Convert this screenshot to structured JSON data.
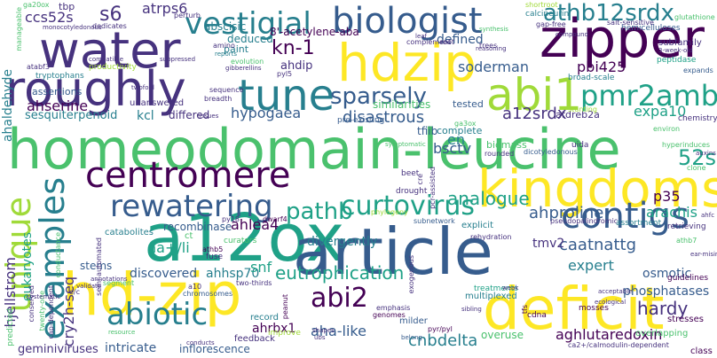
{
  "palette": {
    "dark_purple": "#440154",
    "indigo": "#46327e",
    "blue": "#365c8d",
    "teal_blue": "#277f8e",
    "teal": "#1fa187",
    "green": "#4ac16d",
    "lime": "#a0da39",
    "yellow": "#fde725"
  },
  "words": [
    "homeodomain-leucine",
    "a12ox",
    "article",
    "zipper",
    "hd-zip",
    "deficit",
    "kingdoms",
    "water",
    "hdzip",
    "roughly",
    "tune",
    "abi1",
    "centromere",
    "contigs",
    "unique",
    "examples",
    "biologist",
    "athb12srdx",
    "vestigial",
    "rewatering",
    "abiotic",
    "curtovirus",
    "pmr2amb",
    "sparsely",
    "abi2",
    "pathb",
    "kn-1",
    "52s",
    "a12srdx",
    "s6",
    "atrps6",
    "ccs52s",
    "hypogaea",
    "disastrous",
    "analogue",
    "ahproline",
    "eutrophication",
    "caatnattg",
    "expert",
    "hardy",
    "cnbdelta",
    "aha-like",
    "ahrbx1",
    "inflorescence",
    "aghlutaredoxin",
    "intricate",
    "geminiviruses",
    "cry2h-seq",
    "hjellstrom",
    "eukaryotes",
    "na+/li",
    "ahlea4",
    "ahhsp70",
    "snf",
    "recombinase",
    "discovered",
    "stems",
    "divergently",
    "tmv2",
    "bsctv",
    "p35",
    "arachis",
    "osmotic",
    "phosphatases",
    "kcl",
    "ahserine",
    "sesquiterpenoid",
    "assertions",
    "ahaldehyde",
    "soderman",
    "pbi425",
    "defined",
    "ahdip",
    "deduced",
    "8'-acetylene-aba",
    "abscisic",
    "en",
    "tfiib",
    "expa10",
    "atdreb2a",
    "biomass",
    "complete",
    "similarities",
    "tested",
    "differed",
    "paint",
    "unanswered",
    "tbp",
    "ga20ox",
    "tryptophans",
    "productivity",
    "synthesis",
    "calcineurin",
    "gap-free",
    "hemicelluloses",
    "glutathione",
    "shortroot",
    "subfamily",
    "peptidase",
    "expands",
    "chemistry",
    "broad-scale",
    "stunting",
    "overuse",
    "overlapping",
    "stresses",
    "guidelines",
    "mosses",
    "cdna",
    "multiplexed",
    "treatments",
    "feedback",
    "record",
    "improve",
    "chromosomes",
    "resource",
    "predicted",
    "class",
    "rounded",
    "dicotyledonous",
    "drought",
    "beet",
    "explicit",
    "subnetwork",
    "rehydration",
    "genomes",
    "phylogeny",
    "emphasis",
    "milder",
    "exogenous",
    "symptomatic",
    "pseudopalindromic",
    "assortment",
    "retrieving",
    "curators",
    "fuse",
    "athb5",
    "dwarf4",
    "py18",
    "pyl5",
    "ga3ox",
    "pre-existing",
    "breadth",
    "sequence",
    "evolution",
    "gibberellins",
    "amino",
    "reports",
    "perturb",
    "dedicates",
    "complement",
    "root",
    "leaf",
    "trees",
    "reasoning",
    "twenty-one",
    "validate",
    "systematic",
    "semi-automated",
    "catabolites",
    "conductance",
    "conserved",
    "cap-dependent",
    "ct",
    "uida",
    "athb7",
    "annotations",
    "compatible",
    "twofold",
    "suppressed",
    "compound",
    "two-thirds",
    "a10",
    "segment",
    "pyr/pyl",
    "belong",
    "cre",
    "pcr-assisted",
    "environ",
    "hyperinduces",
    "clone",
    "ear-misir",
    "shapes",
    "ubs",
    "tfs",
    "peanut",
    "sibling",
    "weak",
    "acceptable",
    "ecological",
    "ca2+/calmodulin-dependent",
    "e/c",
    "conducts",
    "manageable",
    "salt-sensitive",
    "atabf3",
    "3-week-old",
    "monocotyledonous",
    "tissues",
    "auxins",
    "ahfc"
  ]
}
